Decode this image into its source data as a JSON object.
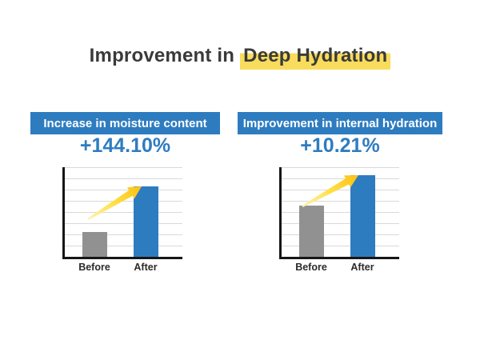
{
  "title": {
    "prefix": "Improvement in",
    "highlight": "Deep Hydration"
  },
  "colors": {
    "background": "#ffffff",
    "accent_blue": "#2e7cc0",
    "bar_before_gray": "#919191",
    "bar_after_blue": "#2e7cc0",
    "highlight_yellow": "#f9dc5c",
    "arrow_yellow": "#ffcc11",
    "title_text": "#3a3a3a",
    "gridline": "#d9d9d9",
    "axis": "#161616"
  },
  "chart_data": [
    {
      "type": "bar",
      "title": "Increase in moisture content",
      "annotation": "+144.10%",
      "categories": [
        "Before",
        "After"
      ],
      "values": [
        28,
        79
      ],
      "value_units": "percent of plot height (no y-axis scale labeled)",
      "bar_colors": [
        "#919191",
        "#2e7cc0"
      ],
      "grid": "horizontal gridlines on",
      "legend": "none",
      "decoration": "yellow growth arrow pointing to top of After bar"
    },
    {
      "type": "bar",
      "title": "Improvement in internal hydration",
      "annotation": "+10.21%",
      "categories": [
        "Before",
        "After"
      ],
      "values": [
        57,
        91
      ],
      "value_units": "percent of plot height (no y-axis scale labeled)",
      "bar_colors": [
        "#919191",
        "#2e7cc0"
      ],
      "grid": "horizontal gridlines on",
      "legend": "none",
      "decoration": "yellow growth arrow from top of Before bar to top of After bar"
    }
  ]
}
